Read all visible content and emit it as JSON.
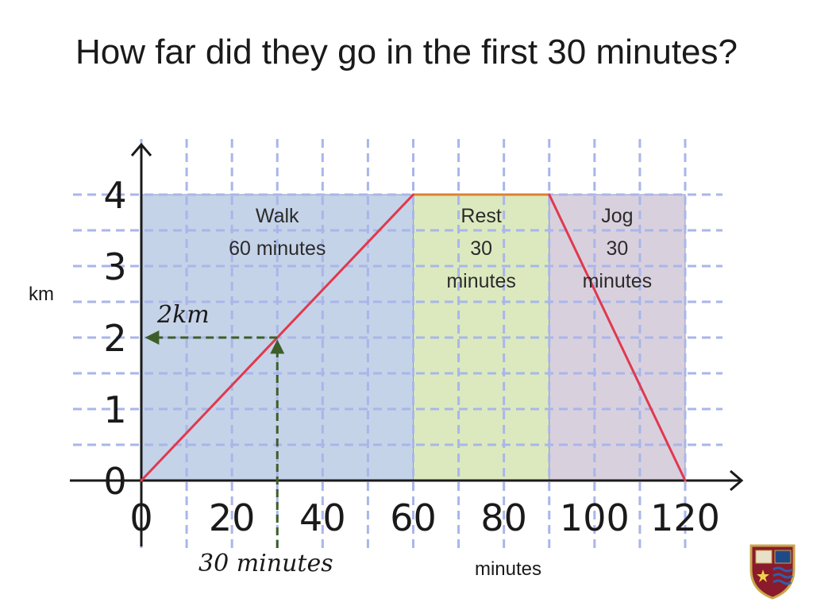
{
  "slide": {
    "title": "How far did they go in the first 30 minutes?"
  },
  "colors": {
    "walk_fill": "#c5d3e8",
    "rest_fill": "#dce9bf",
    "jog_fill": "#d9d0de",
    "line": "#e0394e",
    "rest_line": "#e0802f",
    "grid": "#a9b6ea",
    "guide": "#3d5e2a",
    "axis": "#1a1a1a"
  },
  "chart_data": {
    "type": "line",
    "xlabel": "minutes",
    "ylabel": "km",
    "x_ticks": [
      0,
      20,
      40,
      60,
      80,
      100,
      120
    ],
    "y_ticks": [
      0,
      1,
      2,
      3,
      4
    ],
    "xlim": [
      0,
      120
    ],
    "ylim": [
      0,
      4
    ],
    "grid": true,
    "series": [
      {
        "x": [
          0,
          60,
          90,
          120
        ],
        "y": [
          0,
          4,
          4,
          0
        ]
      }
    ],
    "segments": [
      {
        "name": "Walk",
        "duration": "60 minutes",
        "lines": [
          "Walk",
          "60 minutes"
        ],
        "x_start": 0,
        "x_end": 60,
        "color": "#c5d3e8"
      },
      {
        "name": "Rest",
        "duration": "30 minutes",
        "lines": [
          "Rest",
          "30",
          "minutes"
        ],
        "x_start": 60,
        "x_end": 90,
        "color": "#dce9bf"
      },
      {
        "name": "Jog",
        "duration": "30 minutes",
        "lines": [
          "Jog",
          "30",
          "minutes"
        ],
        "x_start": 90,
        "x_end": 120,
        "color": "#d9d0de"
      }
    ],
    "annotations": [
      {
        "text": "2km",
        "x": 0,
        "y": 2,
        "axis": "y"
      },
      {
        "text": "30 minutes",
        "x": 30,
        "y": 0,
        "axis": "x"
      }
    ],
    "guide_point": {
      "x": 30,
      "y": 2
    }
  }
}
